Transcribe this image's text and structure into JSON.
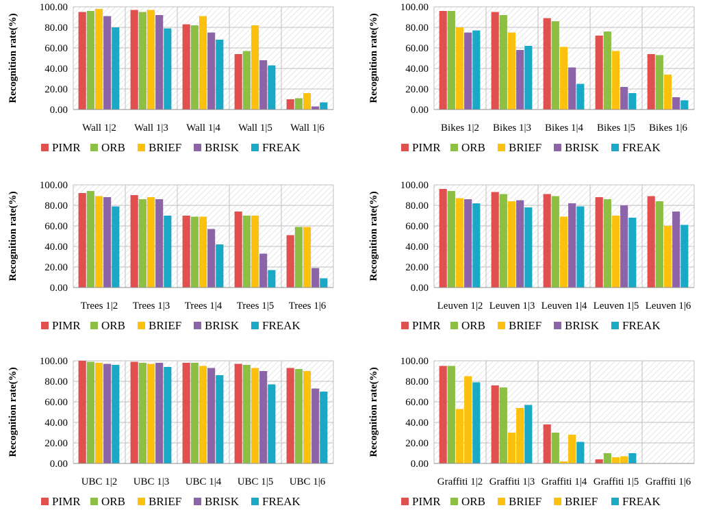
{
  "colors": {
    "PIMR": "#e0504f",
    "ORB": "#8cbf44",
    "BRIEF": "#fcc10f",
    "BRISK": "#8e64a8",
    "FREAK": "#19a9c6"
  },
  "chart_data": [
    {
      "type": "bar",
      "title": "",
      "xlabel": "",
      "ylabel": "Recognition rate(%)",
      "ylim": [
        0,
        100
      ],
      "yticks": [
        "0.00",
        "20.00",
        "40.00",
        "60.00",
        "80.00",
        "100.00"
      ],
      "categories": [
        "Wall 1|2",
        "Wall 1|3",
        "Wall 1|4",
        "Wall 1|5",
        "Wall 1|6"
      ],
      "legend": [
        "PIMR",
        "ORB",
        "BRIEF",
        "BRISK",
        "FREAK"
      ],
      "series": [
        {
          "name": "PIMR",
          "values": [
            95,
            97,
            83,
            54,
            10
          ]
        },
        {
          "name": "ORB",
          "values": [
            96,
            95,
            82,
            57,
            11
          ]
        },
        {
          "name": "BRIEF",
          "values": [
            98,
            97,
            91,
            82,
            16
          ]
        },
        {
          "name": "BRISK",
          "values": [
            91,
            92,
            75,
            48,
            3
          ]
        },
        {
          "name": "FREAK",
          "values": [
            80,
            79,
            68,
            43,
            7
          ]
        }
      ]
    },
    {
      "type": "bar",
      "title": "",
      "xlabel": "",
      "ylabel": "Recognition rate(%)",
      "ylim": [
        0,
        100
      ],
      "yticks": [
        "0.00",
        "20.00",
        "40.00",
        "60.00",
        "80.00",
        "100.00"
      ],
      "categories": [
        "Bikes 1|2",
        "Bikes 1|3",
        "Bikes 1|4",
        "Bikes 1|5",
        "Bikes 1|6"
      ],
      "legend": [
        "PIMR",
        "ORB",
        "BRIEF",
        "BRISK",
        "FREAK"
      ],
      "series": [
        {
          "name": "PIMR",
          "values": [
            96,
            95,
            89,
            72,
            54
          ]
        },
        {
          "name": "ORB",
          "values": [
            96,
            92,
            86,
            76,
            53
          ]
        },
        {
          "name": "BRIEF",
          "values": [
            80,
            75,
            61,
            57,
            34
          ]
        },
        {
          "name": "BRISK",
          "values": [
            75,
            58,
            41,
            22,
            12
          ]
        },
        {
          "name": "FREAK",
          "values": [
            77,
            62,
            25,
            16,
            9
          ]
        }
      ]
    },
    {
      "type": "bar",
      "title": "",
      "xlabel": "",
      "ylabel": "Recognition rate(%)",
      "ylim": [
        0,
        100
      ],
      "yticks": [
        "0.00",
        "20.00",
        "40.00",
        "60.00",
        "80.00",
        "100.00"
      ],
      "categories": [
        "Trees 1|2",
        "Trees 1|3",
        "Trees 1|4",
        "Trees 1|5",
        "Trees 1|6"
      ],
      "legend": [
        "PIMR",
        "ORB",
        "BRIEF",
        "BRISK",
        "FREAK"
      ],
      "series": [
        {
          "name": "PIMR",
          "values": [
            92,
            90,
            70,
            74,
            51
          ]
        },
        {
          "name": "ORB",
          "values": [
            94,
            86,
            69,
            70,
            59
          ]
        },
        {
          "name": "BRIEF",
          "values": [
            89,
            88,
            69,
            70,
            59
          ]
        },
        {
          "name": "BRISK",
          "values": [
            88,
            86,
            57,
            33,
            19
          ]
        },
        {
          "name": "FREAK",
          "values": [
            79,
            70,
            42,
            17,
            9
          ]
        }
      ]
    },
    {
      "type": "bar",
      "title": "",
      "xlabel": "",
      "ylabel": "Recognition rate(%)",
      "ylim": [
        0,
        100
      ],
      "yticks": [
        "0.00",
        "20.00",
        "40.00",
        "60.00",
        "80.00",
        "100.00"
      ],
      "categories": [
        "Leuven 1|2",
        "Leuven 1|3",
        "Leuven 1|4",
        "Leuven 1|5",
        "Leuven 1|6"
      ],
      "legend": [
        "PIMR",
        "ORB",
        "BRIEF",
        "BRISK",
        "FREAK"
      ],
      "series": [
        {
          "name": "PIMR",
          "values": [
            96,
            93,
            91,
            88,
            89
          ]
        },
        {
          "name": "ORB",
          "values": [
            94,
            91,
            89,
            86,
            84
          ]
        },
        {
          "name": "BRIEF",
          "values": [
            87,
            84,
            69,
            70,
            60
          ]
        },
        {
          "name": "BRISK",
          "values": [
            86,
            85,
            82,
            80,
            74
          ]
        },
        {
          "name": "FREAK",
          "values": [
            82,
            78,
            79,
            68,
            61
          ]
        }
      ]
    },
    {
      "type": "bar",
      "title": "",
      "xlabel": "",
      "ylabel": "Recognition rate(%)",
      "ylim": [
        0,
        100
      ],
      "yticks": [
        "0.00",
        "20.00",
        "40.00",
        "60.00",
        "80.00",
        "100.00"
      ],
      "categories": [
        "UBC 1|2",
        "UBC 1|3",
        "UBC 1|4",
        "UBC 1|5",
        "UBC 1|6"
      ],
      "legend": [
        "PIMR",
        "ORB",
        "BRIEF",
        "BRISK",
        "FREAK"
      ],
      "series": [
        {
          "name": "PIMR",
          "values": [
            100,
            99,
            98,
            97,
            93
          ]
        },
        {
          "name": "ORB",
          "values": [
            99,
            98,
            98,
            96,
            92
          ]
        },
        {
          "name": "BRIEF",
          "values": [
            98,
            97,
            95,
            93,
            90
          ]
        },
        {
          "name": "BRISK",
          "values": [
            97,
            98,
            93,
            90,
            73
          ]
        },
        {
          "name": "FREAK",
          "values": [
            96,
            94,
            86,
            77,
            70
          ]
        }
      ]
    },
    {
      "type": "bar",
      "title": "",
      "xlabel": "",
      "ylabel": "Recognition rate(%)",
      "ylim": [
        0,
        100
      ],
      "yticks": [
        "0.00",
        "20.00",
        "40.00",
        "60.00",
        "80.00",
        "100.00"
      ],
      "categories": [
        "Graffiti 1|2",
        "Graffiti 1|3",
        "Graffiti 1|4",
        "Graffiti 1|5",
        "Graffiti 1|6"
      ],
      "legend": [
        "PIMR",
        "ORB",
        "BRIEF",
        "BRIEF",
        "FREAK"
      ],
      "series": [
        {
          "name": "PIMR",
          "values": [
            95,
            76,
            38,
            4,
            0
          ]
        },
        {
          "name": "ORB",
          "values": [
            95,
            74,
            30,
            10,
            0
          ]
        },
        {
          "name": "BRIEF",
          "values": [
            53,
            30,
            2,
            6,
            0
          ]
        },
        {
          "name": "BRIEF",
          "values": [
            85,
            54,
            28,
            7,
            0
          ]
        },
        {
          "name": "FREAK",
          "values": [
            79,
            57,
            21,
            10,
            0
          ]
        }
      ]
    }
  ]
}
